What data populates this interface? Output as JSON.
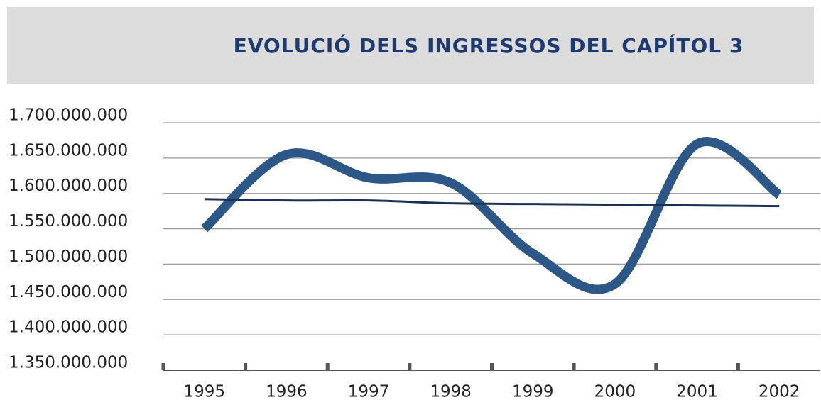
{
  "chart_data": {
    "type": "line",
    "title": "EVOLUCIÓ DELS INGRESSOS DEL CAPÍTOL 3",
    "categories": [
      "1995",
      "1996",
      "1997",
      "1998",
      "1999",
      "2000",
      "2001",
      "2002"
    ],
    "series": [
      {
        "color": "#2d5786",
        "values": [
          1550000000,
          1655000000,
          1622000000,
          1615000000,
          1515000000,
          1472000000,
          1670000000,
          1598000000
        ]
      },
      {
        "color": "#1b2f57",
        "values": [
          1592000000,
          1590000000,
          1590000000,
          1586000000,
          1585000000,
          1584000000,
          1583000000,
          1582000000
        ]
      }
    ],
    "ylim": [
      1350000000,
      1700000000
    ],
    "yticks": [
      {
        "value": 1350000000,
        "label": "1.350.000.000"
      },
      {
        "value": 1400000000,
        "label": "1.400.000.000"
      },
      {
        "value": 1450000000,
        "label": "1.450.000.000"
      },
      {
        "value": 1500000000,
        "label": "1.500.000.000"
      },
      {
        "value": 1550000000,
        "label": "1.550.000.000"
      },
      {
        "value": 1600000000,
        "label": "1.600.000.000"
      },
      {
        "value": 1650000000,
        "label": "1.650.000.000"
      },
      {
        "value": 1700000000,
        "label": "1.700.000.000"
      }
    ],
    "grid": true
  }
}
